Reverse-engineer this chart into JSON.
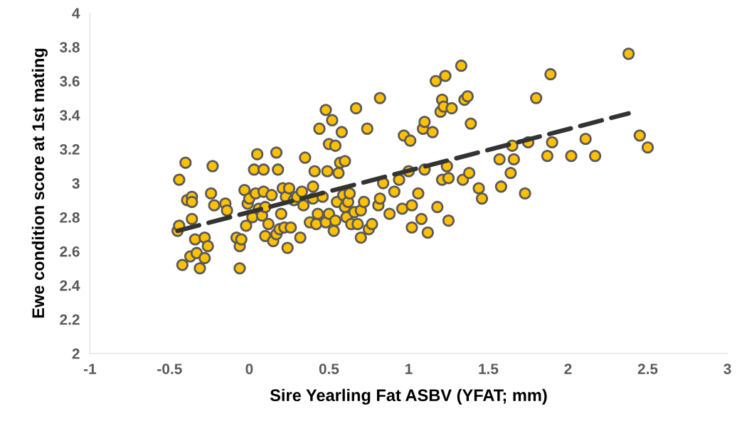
{
  "chart_data": {
    "type": "scatter",
    "xlabel": "Sire Yearling Fat ASBV (YFAT; mm)",
    "ylabel": "Ewe condition score at 1st mating",
    "xlim": [
      -1,
      3
    ],
    "xticks": [
      -1,
      -0.5,
      0,
      0.5,
      1,
      1.5,
      2,
      2.5,
      3
    ],
    "ylim": [
      2,
      4
    ],
    "yticks": [
      2,
      2.2,
      2.4,
      2.6,
      2.8,
      3,
      3.2,
      3.4,
      3.6,
      3.8,
      4
    ],
    "grid": false,
    "legend": false,
    "series": [
      {
        "color": "#ffc000",
        "marker": "circle",
        "x": [
          -0.45,
          -0.44,
          -0.44,
          -0.42,
          -0.4,
          -0.39,
          -0.37,
          -0.36,
          -0.36,
          -0.36,
          -0.34,
          -0.33,
          -0.31,
          -0.28,
          -0.28,
          -0.26,
          -0.24,
          -0.23,
          -0.22,
          -0.15,
          -0.14,
          -0.08,
          -0.06,
          -0.06,
          -0.05,
          -0.03,
          -0.02,
          -0.01,
          0.0,
          0.02,
          0.03,
          0.04,
          0.05,
          0.06,
          0.08,
          0.09,
          0.09,
          0.1,
          0.1,
          0.12,
          0.14,
          0.15,
          0.17,
          0.17,
          0.18,
          0.19,
          0.2,
          0.21,
          0.22,
          0.23,
          0.24,
          0.25,
          0.26,
          0.28,
          0.3,
          0.32,
          0.33,
          0.34,
          0.35,
          0.38,
          0.4,
          0.4,
          0.41,
          0.42,
          0.43,
          0.44,
          0.46,
          0.48,
          0.48,
          0.49,
          0.5,
          0.5,
          0.52,
          0.53,
          0.54,
          0.54,
          0.55,
          0.56,
          0.57,
          0.58,
          0.59,
          0.6,
          0.6,
          0.61,
          0.62,
          0.63,
          0.64,
          0.66,
          0.67,
          0.68,
          0.7,
          0.7,
          0.72,
          0.74,
          0.75,
          0.77,
          0.81,
          0.82,
          0.82,
          0.84,
          0.88,
          0.91,
          0.94,
          0.96,
          0.97,
          1.0,
          1.01,
          1.02,
          1.02,
          1.06,
          1.08,
          1.09,
          1.1,
          1.1,
          1.12,
          1.15,
          1.17,
          1.18,
          1.2,
          1.21,
          1.21,
          1.22,
          1.23,
          1.24,
          1.25,
          1.25,
          1.27,
          1.33,
          1.34,
          1.35,
          1.37,
          1.38,
          1.39,
          1.44,
          1.46,
          1.57,
          1.58,
          1.64,
          1.65,
          1.66,
          1.73,
          1.75,
          1.8,
          1.87,
          1.89,
          1.9,
          2.02,
          2.11,
          2.17,
          2.38,
          2.45,
          2.5
        ],
        "values": [
          2.72,
          2.75,
          3.02,
          2.52,
          3.12,
          2.9,
          2.57,
          2.92,
          2.79,
          2.89,
          2.67,
          2.59,
          2.5,
          2.56,
          2.68,
          2.63,
          2.94,
          3.1,
          2.87,
          2.88,
          2.84,
          2.68,
          2.63,
          2.5,
          2.67,
          2.96,
          2.75,
          2.88,
          2.91,
          2.8,
          3.08,
          2.94,
          3.17,
          2.85,
          2.81,
          3.08,
          2.95,
          2.69,
          2.86,
          2.76,
          2.93,
          2.66,
          2.7,
          3.18,
          3.08,
          2.73,
          2.82,
          2.97,
          2.74,
          2.92,
          2.62,
          2.97,
          2.74,
          2.9,
          2.92,
          2.68,
          2.95,
          2.87,
          3.15,
          2.77,
          2.91,
          2.98,
          3.07,
          2.76,
          2.82,
          3.32,
          2.92,
          2.77,
          3.43,
          3.07,
          3.23,
          2.82,
          3.37,
          2.72,
          3.22,
          2.78,
          2.89,
          3.06,
          3.12,
          3.3,
          2.93,
          2.86,
          3.13,
          2.8,
          2.89,
          2.94,
          2.76,
          2.83,
          3.44,
          2.76,
          2.84,
          2.68,
          2.89,
          3.32,
          2.73,
          2.76,
          2.87,
          3.5,
          2.91,
          3.0,
          2.82,
          2.95,
          3.02,
          2.85,
          3.28,
          3.07,
          3.25,
          2.87,
          2.74,
          2.94,
          2.79,
          3.32,
          3.08,
          3.36,
          2.71,
          3.3,
          3.6,
          2.86,
          3.42,
          3.02,
          3.49,
          3.45,
          3.63,
          3.1,
          3.03,
          2.78,
          3.44,
          3.69,
          3.02,
          3.49,
          3.51,
          3.06,
          3.35,
          2.97,
          2.91,
          3.14,
          2.98,
          3.06,
          3.22,
          3.14,
          2.94,
          3.24,
          3.5,
          3.16,
          3.64,
          3.24,
          3.16,
          3.26,
          3.16,
          3.76,
          3.28,
          3.21
        ]
      },
      {
        "type": "line",
        "color": "#333333",
        "line_style": "dashed",
        "marker": "none",
        "x": [
          -0.45,
          2.38
        ],
        "values": [
          2.72,
          3.41
        ]
      }
    ]
  }
}
